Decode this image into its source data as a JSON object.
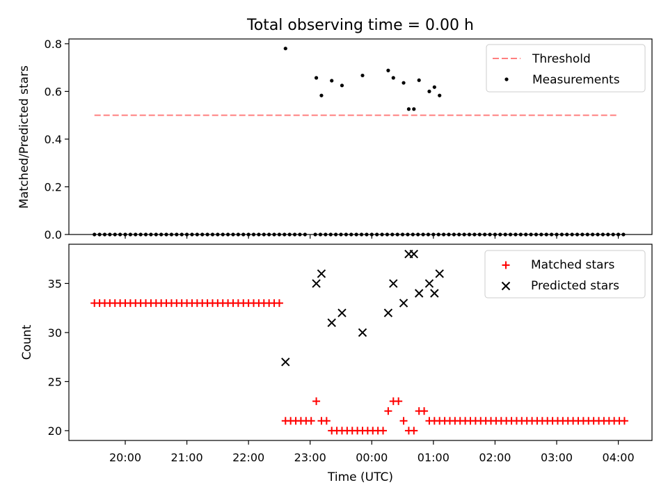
{
  "title": "Total observing time = 0.00 h",
  "chart_data": [
    {
      "type": "scatter",
      "panel": "top",
      "xlabel": "",
      "ylabel": "Matched/Predicted stars",
      "ylim": [
        0,
        0.82
      ],
      "yticks": [
        0.0,
        0.2,
        0.4,
        0.6,
        0.8
      ],
      "ytick_labels": [
        "0.0",
        "0.2",
        "0.4",
        "0.6",
        "0.8"
      ],
      "legend": "top-right",
      "series": [
        {
          "name": "Threshold",
          "kind": "dashed-line",
          "color": "#ff7f7f",
          "x": [
            "19:30",
            "04:00"
          ],
          "y": [
            0.5,
            0.5
          ]
        },
        {
          "name": "Measurements",
          "kind": "dot",
          "color": "#000000",
          "x": [
            "19:30",
            "19:35",
            "19:40",
            "19:45",
            "19:50",
            "19:55",
            "20:00",
            "20:05",
            "20:10",
            "20:15",
            "20:20",
            "20:25",
            "20:30",
            "20:35",
            "20:40",
            "20:45",
            "20:50",
            "20:55",
            "21:00",
            "21:05",
            "21:10",
            "21:15",
            "21:20",
            "21:25",
            "21:30",
            "21:35",
            "21:40",
            "21:45",
            "21:50",
            "21:55",
            "22:00",
            "22:05",
            "22:10",
            "22:15",
            "22:20",
            "22:25",
            "22:30",
            "22:35",
            "22:40",
            "22:45",
            "22:50",
            "22:55",
            "23:05",
            "23:10",
            "23:15",
            "23:20",
            "23:25",
            "23:30",
            "23:35",
            "23:40",
            "23:45",
            "23:50",
            "23:55",
            "00:00",
            "00:05",
            "00:10",
            "00:15",
            "00:20",
            "00:25",
            "00:30",
            "00:35",
            "00:40",
            "00:45",
            "00:50",
            "00:55",
            "01:00",
            "01:05",
            "01:10",
            "01:15",
            "01:20",
            "01:25",
            "01:30",
            "01:35",
            "01:40",
            "01:45",
            "01:50",
            "01:55",
            "02:00",
            "02:05",
            "02:10",
            "02:15",
            "02:20",
            "02:25",
            "02:30",
            "02:35",
            "02:40",
            "02:45",
            "02:50",
            "02:55",
            "03:00",
            "03:05",
            "03:10",
            "03:15",
            "03:20",
            "03:25",
            "03:30",
            "03:35",
            "03:40",
            "03:45",
            "03:50",
            "03:55",
            "04:00",
            "04:05",
            "22:36",
            "23:06",
            "23:11",
            "23:21",
            "23:31",
            "23:51",
            "00:16",
            "00:21",
            "00:31",
            "00:36",
            "00:41",
            "00:46",
            "00:56",
            "01:01",
            "01:06"
          ],
          "y": [
            0,
            0,
            0,
            0,
            0,
            0,
            0,
            0,
            0,
            0,
            0,
            0,
            0,
            0,
            0,
            0,
            0,
            0,
            0,
            0,
            0,
            0,
            0,
            0,
            0,
            0,
            0,
            0,
            0,
            0,
            0,
            0,
            0,
            0,
            0,
            0,
            0,
            0,
            0,
            0,
            0,
            0,
            0,
            0,
            0,
            0,
            0,
            0,
            0,
            0,
            0,
            0,
            0,
            0,
            0,
            0,
            0,
            0,
            0,
            0,
            0,
            0,
            0,
            0,
            0,
            0,
            0,
            0,
            0,
            0,
            0,
            0,
            0,
            0,
            0,
            0,
            0,
            0,
            0,
            0,
            0,
            0,
            0,
            0,
            0,
            0,
            0,
            0,
            0,
            0,
            0,
            0,
            0,
            0,
            0,
            0,
            0,
            0,
            0,
            0,
            0,
            0,
            0,
            0.78,
            0.657,
            0.583,
            0.645,
            0.625,
            0.667,
            0.688,
            0.657,
            0.636,
            0.526,
            0.526,
            0.647,
            0.6,
            0.618,
            0.583
          ]
        }
      ]
    },
    {
      "type": "scatter",
      "panel": "bottom",
      "xlabel": "Time (UTC)",
      "ylabel": "Count",
      "ylim": [
        19,
        39
      ],
      "yticks": [
        20,
        25,
        30,
        35
      ],
      "ytick_labels": [
        "20",
        "25",
        "30",
        "35"
      ],
      "xticks": [
        "20:00",
        "21:00",
        "22:00",
        "23:00",
        "00:00",
        "01:00",
        "02:00",
        "03:00",
        "04:00"
      ],
      "legend": "top-right",
      "series": [
        {
          "name": "Matched stars",
          "kind": "plus",
          "color": "#ff0000",
          "x": [
            "19:30",
            "19:35",
            "19:40",
            "19:45",
            "19:50",
            "19:55",
            "20:00",
            "20:05",
            "20:10",
            "20:15",
            "20:20",
            "20:25",
            "20:30",
            "20:35",
            "20:40",
            "20:45",
            "20:50",
            "20:55",
            "21:00",
            "21:05",
            "21:10",
            "21:15",
            "21:20",
            "21:25",
            "21:30",
            "21:35",
            "21:40",
            "21:45",
            "21:50",
            "21:55",
            "22:00",
            "22:05",
            "22:10",
            "22:15",
            "22:20",
            "22:25",
            "22:30",
            "22:36",
            "22:41",
            "22:46",
            "22:51",
            "22:56",
            "23:01",
            "23:06",
            "23:11",
            "23:16",
            "23:21",
            "23:26",
            "23:31",
            "23:36",
            "23:41",
            "23:46",
            "23:51",
            "23:56",
            "00:01",
            "00:06",
            "00:11",
            "00:16",
            "00:21",
            "00:26",
            "00:31",
            "00:36",
            "00:41",
            "00:46",
            "00:51",
            "00:56",
            "01:01",
            "01:06",
            "01:11",
            "01:16",
            "01:21",
            "01:26",
            "01:31",
            "01:36",
            "01:41",
            "01:46",
            "01:51",
            "01:56",
            "02:01",
            "02:06",
            "02:11",
            "02:16",
            "02:21",
            "02:26",
            "02:31",
            "02:36",
            "02:41",
            "02:46",
            "02:51",
            "02:56",
            "03:01",
            "03:06",
            "03:11",
            "03:16",
            "03:21",
            "03:26",
            "03:31",
            "03:36",
            "03:41",
            "03:46",
            "03:51",
            "03:56",
            "04:01",
            "04:06"
          ],
          "y": [
            33,
            33,
            33,
            33,
            33,
            33,
            33,
            33,
            33,
            33,
            33,
            33,
            33,
            33,
            33,
            33,
            33,
            33,
            33,
            33,
            33,
            33,
            33,
            33,
            33,
            33,
            33,
            33,
            33,
            33,
            33,
            33,
            33,
            33,
            33,
            33,
            33,
            21,
            21,
            21,
            21,
            21,
            21,
            23,
            21,
            21,
            20,
            20,
            20,
            20,
            20,
            20,
            20,
            20,
            20,
            20,
            20,
            22,
            23,
            23,
            21,
            20,
            20,
            22,
            22,
            21,
            21,
            21,
            21,
            21,
            21,
            21,
            21,
            21,
            21,
            21,
            21,
            21,
            21,
            21,
            21,
            21,
            21,
            21,
            21,
            21,
            21,
            21,
            21,
            21,
            21,
            21,
            21,
            21,
            21,
            21,
            21,
            21,
            21,
            21,
            21,
            21,
            21,
            21
          ]
        },
        {
          "name": "Predicted stars",
          "kind": "x",
          "color": "#000000",
          "x": [
            "22:36",
            "23:06",
            "23:11",
            "23:21",
            "23:31",
            "23:51",
            "00:16",
            "00:21",
            "00:31",
            "00:36",
            "00:41",
            "00:46",
            "00:56",
            "01:01",
            "01:06"
          ],
          "y": [
            27,
            35,
            36,
            31,
            32,
            30,
            32,
            35,
            33,
            38,
            38,
            34,
            35,
            34,
            36
          ]
        }
      ]
    }
  ]
}
